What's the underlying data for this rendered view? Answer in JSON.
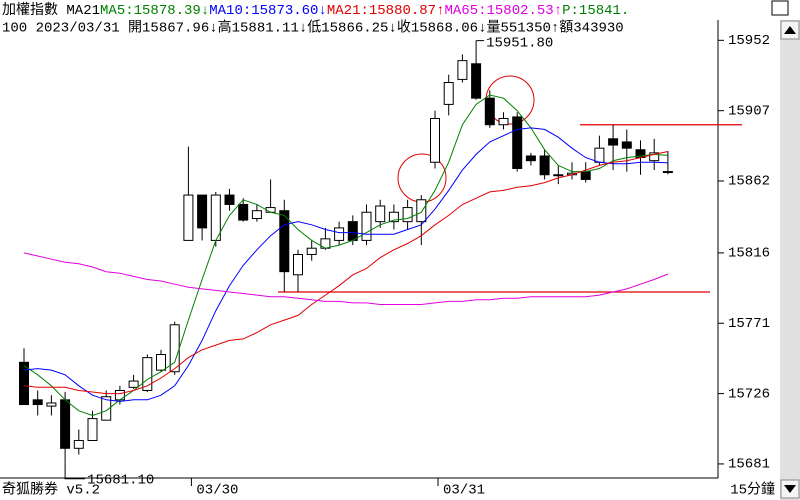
{
  "chart_data": {
    "type": "candlestick",
    "header_items": [
      {
        "text": "加權指數 MA21",
        "color": "#000000"
      },
      {
        "text": "MA5:15878.39↓",
        "color": "#008000"
      },
      {
        "text": "MA10:15873.60↓",
        "color": "#0000ff"
      },
      {
        "text": "MA21:15880.87↑",
        "color": "#e00000"
      },
      {
        "text": "MA65:15802.53↑",
        "color": "#e000e0"
      },
      {
        "text": "P:15841.",
        "color": "#008000"
      }
    ],
    "header_line2": "100 2023/03/31 開15867.96↓高15881.11↓低15866.25↓收15868.06↓量551350↑額343930",
    "status_left": "奇狐勝券 v5.2",
    "period": "15分鐘",
    "categories": [
      null,
      null,
      null,
      null,
      null,
      null,
      null,
      null,
      null,
      null,
      null,
      null,
      "03/30",
      null,
      null,
      null,
      null,
      null,
      null,
      null,
      null,
      null,
      null,
      null,
      null,
      null,
      null,
      null,
      null,
      null,
      "03/31",
      null,
      null,
      null,
      null,
      null,
      null,
      null,
      null,
      null,
      null,
      null,
      null,
      null,
      null,
      null,
      null,
      null
    ],
    "open": [
      15746,
      15722,
      15718,
      15722,
      15691,
      15696,
      15709,
      15722,
      15730,
      15728,
      15741,
      15740,
      15824,
      15853,
      15824,
      15853,
      15847,
      15838,
      15842,
      15843,
      15802,
      15815,
      15819,
      15824,
      15836,
      15824,
      15836,
      15836,
      15836,
      15836,
      15874,
      15911,
      15927,
      15937,
      15915,
      15898,
      15903,
      15878,
      15878,
      15866,
      15866,
      15868,
      15874,
      15889,
      15887,
      15882,
      15875,
      15867.96
    ],
    "high": [
      15755,
      15728,
      15725,
      15727,
      15703,
      15715,
      15728,
      15731,
      15738,
      15751,
      15754,
      15772,
      15884,
      15853,
      15855,
      15857,
      15851,
      15847,
      15863,
      15850,
      15818,
      15824,
      15832,
      15836,
      15840,
      15847,
      15850,
      15847,
      15850,
      15853,
      15907,
      15930,
      15943,
      15951.8,
      15920,
      15906,
      15906,
      15880,
      15882,
      15872,
      15874,
      15874,
      15891,
      15898,
      15895,
      15888,
      15889,
      15881.11
    ],
    "low": [
      15719,
      15712,
      15712,
      15681.1,
      15687,
      15696,
      15709,
      15719,
      15729,
      15727,
      15740,
      15738,
      15824,
      15824,
      15820,
      15843,
      15836,
      15836,
      15842,
      15791,
      15791,
      15811,
      15818,
      15821,
      15821,
      15821,
      15832,
      15831,
      15831,
      15821,
      15870,
      15904,
      15925,
      15914,
      15896,
      15895,
      15868,
      15872,
      15863,
      15860,
      15863,
      15861,
      15872,
      15869,
      15868,
      15866,
      15869,
      15866.25
    ],
    "close": [
      15719,
      15719,
      15720,
      15691,
      15696,
      15710,
      15724,
      15728,
      15734,
      15749,
      15751,
      15770,
      15853,
      15832,
      15853,
      15847,
      15837,
      15843,
      15845,
      15804,
      15815,
      15819,
      15825,
      15832,
      15824,
      15842,
      15846,
      15842,
      15845,
      15850,
      15902,
      15925,
      15939,
      15915,
      15898,
      15902,
      15870,
      15875,
      15866,
      15866,
      15867,
      15863,
      15883,
      15885,
      15883,
      15877,
      15880,
      15868.06
    ],
    "up_color": "#ffffff",
    "down_color": "#000000",
    "lines": [
      {
        "name": "MA5",
        "color": "#008000",
        "values": [
          15744,
          15738,
          15731,
          15722,
          15715,
          15712,
          15715,
          15722,
          15728,
          15735,
          15740,
          15746,
          15773,
          15799,
          15824,
          15840,
          15850,
          15847,
          15842,
          15840,
          15831,
          15824,
          15819,
          15821,
          15824,
          15829,
          15834,
          15837,
          15838,
          15842,
          15856,
          15874,
          15898,
          15911,
          15917,
          15915,
          15907,
          15896,
          15882,
          15872,
          15868,
          15868,
          15870,
          15875,
          15877,
          15878,
          15879,
          15878.39
        ]
      },
      {
        "name": "MA10",
        "color": "#0000ff",
        "values": [
          15741,
          15742,
          15741,
          15738,
          15731,
          15725,
          15722,
          15721,
          15722,
          15722,
          15725,
          15731,
          15744,
          15760,
          15779,
          15795,
          15808,
          15818,
          15827,
          15834,
          15836,
          15834,
          15831,
          15829,
          15829,
          15828,
          15828,
          15828,
          15831,
          15834,
          15844,
          15856,
          15869,
          15879,
          15887,
          15891,
          15895,
          15896,
          15895,
          15890,
          15883,
          15877,
          15874,
          15873,
          15873,
          15874,
          15874,
          15873.6
        ]
      },
      {
        "name": "MA21",
        "color": "#e00000",
        "values": [
          15731,
          15730,
          15730,
          15730,
          15728,
          15727,
          15726,
          15726,
          15728,
          15731,
          15736,
          15742,
          15749,
          15754,
          15757,
          15760,
          15761,
          15765,
          15770,
          15773,
          15776,
          15783,
          15789,
          15795,
          15802,
          15806,
          15813,
          15818,
          15822,
          15827,
          15834,
          15840,
          15847,
          15851,
          15855,
          15856,
          15858,
          15859,
          15861,
          15864,
          15866,
          15869,
          15872,
          15874,
          15875,
          15877,
          15879,
          15880.87
        ]
      },
      {
        "name": "MA65",
        "color": "#e000e0",
        "values": [
          15816,
          15814,
          15812,
          15810,
          15809,
          15807,
          15804,
          15803,
          15801,
          15799,
          15798,
          15796,
          15794,
          15793,
          15792,
          15791,
          15790,
          15789,
          15788,
          15788,
          15787,
          15786,
          15785,
          15785,
          15784,
          15784,
          15783,
          15783,
          15783,
          15783,
          15784,
          15785,
          15785,
          15786,
          15786,
          15787,
          15787,
          15788,
          15788,
          15788,
          15788,
          15788,
          15789,
          15791,
          15793,
          15796,
          15799,
          15802.53
        ]
      }
    ],
    "hlines": [
      {
        "value": 15898,
        "color": "#e00000"
      },
      {
        "value": 15791,
        "color": "#e00000"
      }
    ],
    "annotations": [
      {
        "label": "15951.80",
        "value": 15951.8
      },
      {
        "label": "15681.10",
        "value": 15681.1
      }
    ],
    "ylim": [
      15672,
      15965
    ],
    "yticks": [
      15952,
      15907,
      15862,
      15816,
      15771,
      15726,
      15681
    ]
  }
}
